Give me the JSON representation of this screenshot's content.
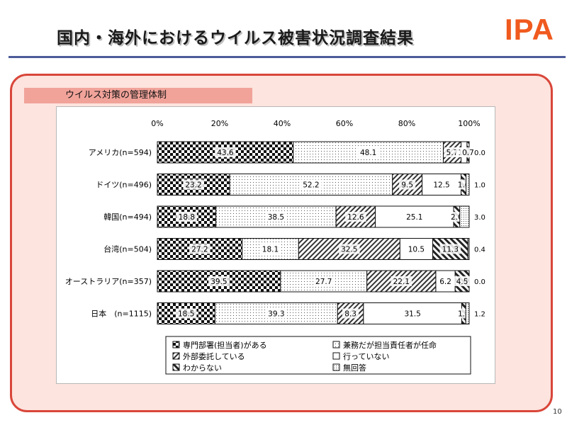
{
  "slide": {
    "title": "国内・海外におけるウイルス被害状況調査結果",
    "logo_text": "IPA",
    "section_label": "ウイルス対策の管理体制",
    "page_number": "10"
  },
  "colors": {
    "accent": "#f05a1e",
    "panel_border": "#d9463a",
    "panel_fill": "#fde4de",
    "label_fill": "#f1a39a",
    "title_rule": "#4d5b9a"
  },
  "chart_data": {
    "type": "bar",
    "orientation": "horizontal",
    "stacked": true,
    "x_ticks": [
      "0%",
      "20%",
      "40%",
      "60%",
      "80%",
      "100%"
    ],
    "xlim": [
      0,
      100
    ],
    "categories": [
      "アメリカ(n=594)",
      "ドイツ(n=496)",
      "韓国(n=494)",
      "台湾(n=504)",
      "オーストラリア(n=357)",
      "日本　(n=1115)"
    ],
    "series": [
      {
        "name": "専門部署(担当者)がある",
        "pattern": "checker",
        "values": [
          43.6,
          23.2,
          18.8,
          27.2,
          39.5,
          18.5
        ]
      },
      {
        "name": "兼務だが担当責任者が任命",
        "pattern": "dots",
        "values": [
          48.1,
          52.2,
          38.5,
          18.1,
          27.7,
          39.3
        ]
      },
      {
        "name": "外部委託している",
        "pattern": "diagonal",
        "values": [
          5.7,
          9.5,
          12.6,
          32.5,
          22.1,
          8.3
        ]
      },
      {
        "name": "行っていない",
        "pattern": "blank",
        "values": [
          1.9,
          12.5,
          25.1,
          10.5,
          6.2,
          31.5
        ]
      },
      {
        "name": "わからない",
        "pattern": "hatch-bold",
        "values": [
          0.7,
          1.6,
          2.0,
          11.3,
          4.5,
          1.3
        ]
      },
      {
        "name": "無回答",
        "pattern": "fine-dots",
        "values": [
          0.0,
          1.0,
          3.0,
          0.4,
          0.0,
          1.2
        ]
      }
    ],
    "legend_position": "bottom",
    "legend_columns": 2
  }
}
